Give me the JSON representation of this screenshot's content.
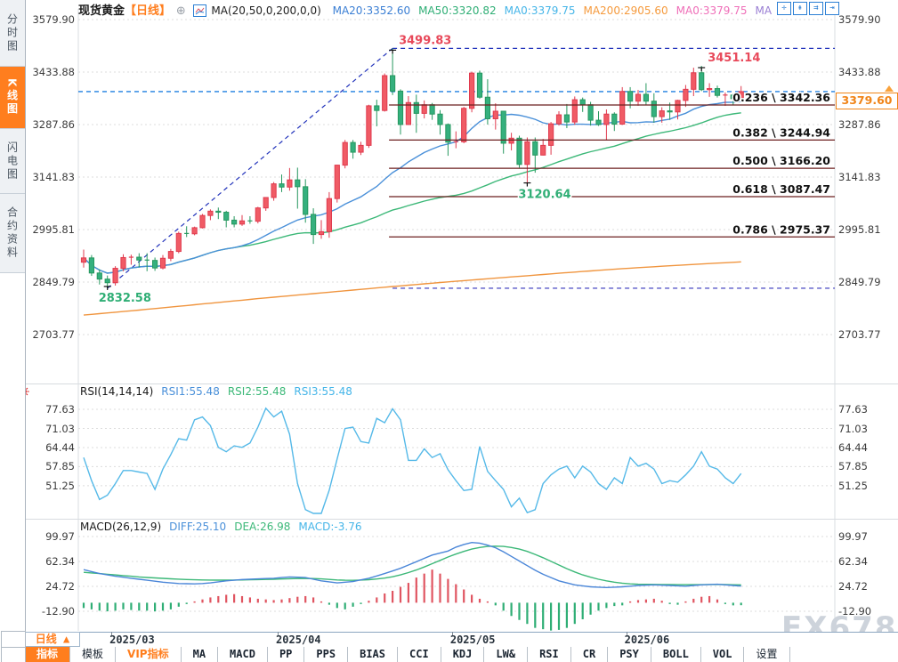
{
  "app": {
    "watermark": "FX678"
  },
  "sidebar": {
    "tabs": [
      {
        "name": "time-chart",
        "label": "分时图",
        "active": false
      },
      {
        "name": "kline-chart",
        "label": "K线图",
        "active": true
      },
      {
        "name": "lightning-chart",
        "label": "闪电图",
        "active": false
      },
      {
        "name": "contract-info",
        "label": "合约资料",
        "active": false
      }
    ]
  },
  "header": {
    "symbol": "现货黄金",
    "period_tag": "【日线】",
    "plus_icon": "⊕",
    "ma_settings": "MA(20,50,0,200,0,0)",
    "ma_values": [
      {
        "label": "MA20:3352.60",
        "color": "#3b7fd4"
      },
      {
        "label": "MA50:3320.82",
        "color": "#2fae75"
      },
      {
        "label": "MA0:3379.75",
        "color": "#45b5e8"
      },
      {
        "label": "MA200:2905.60",
        "color": "#f59a3d"
      },
      {
        "label": "MA0:3379.75",
        "color": "#ef6eb8"
      },
      {
        "label": "MA",
        "color": "#9a7fd4"
      }
    ],
    "window_icons": [
      "pan-icon",
      "zoom-vertical-icon",
      "zoom-horizontal-icon",
      "exit-icon"
    ],
    "window_icon_glyphs": [
      "✛",
      "╚↑",
      "╚→",
      "❘→"
    ]
  },
  "price_box": {
    "value": "3379.60"
  },
  "footer": {
    "period_button": "日线 ▲",
    "settings_icon": "✳",
    "toolbar": [
      {
        "label": "指标",
        "active": true
      },
      {
        "label": "模板"
      },
      {
        "label": "VIP指标",
        "vip": true
      },
      {
        "label": "MA"
      },
      {
        "label": "MACD"
      },
      {
        "label": "PP"
      },
      {
        "label": "PPS"
      },
      {
        "label": "BIAS"
      },
      {
        "label": "CCI"
      },
      {
        "label": "KDJ"
      },
      {
        "label": "LW&"
      },
      {
        "label": "RSI"
      },
      {
        "label": "CR"
      },
      {
        "label": "PSY"
      },
      {
        "label": "BOLL"
      },
      {
        "label": "VOL"
      },
      {
        "label": "设置"
      }
    ]
  },
  "chart_data": {
    "type": "candlestick",
    "title": "现货黄金 日线",
    "x_axis": {
      "months": [
        {
          "label": "2025/03",
          "index": 3.5
        },
        {
          "label": "2025/04",
          "index": 24.5
        },
        {
          "label": "2025/05",
          "index": 46.5
        },
        {
          "label": "2025/06",
          "index": 68.5
        }
      ]
    },
    "main": {
      "y_axis": [
        3579.9,
        3433.88,
        3287.86,
        3141.83,
        2995.81,
        2849.79,
        2703.77
      ],
      "current_price": 3379.6,
      "candle_up_color": "#ef5160",
      "candle_down_color": "#30ae7b",
      "candles": [
        [
          2905,
          2940,
          2890,
          2917
        ],
        [
          2917,
          2925,
          2867,
          2875
        ],
        [
          2875,
          2885,
          2843,
          2858
        ],
        [
          2858,
          2868,
          2832.58,
          2848
        ],
        [
          2848,
          2894,
          2840,
          2888
        ],
        [
          2888,
          2927,
          2880,
          2918
        ],
        [
          2918,
          2926,
          2898,
          2919
        ],
        [
          2919,
          2930,
          2891,
          2911
        ],
        [
          2911,
          2930,
          2880,
          2910
        ],
        [
          2910,
          2918,
          2881,
          2889
        ],
        [
          2889,
          2925,
          2885,
          2916
        ],
        [
          2916,
          2942,
          2908,
          2935
        ],
        [
          2935,
          2990,
          2930,
          2985
        ],
        [
          2985,
          3005,
          2975,
          2984
        ],
        [
          2984,
          3004,
          2980,
          3001
        ],
        [
          3001,
          3039,
          2999,
          3035
        ],
        [
          3035,
          3052,
          3022,
          3047
        ],
        [
          3047,
          3057,
          3025,
          3044
        ],
        [
          3044,
          3048,
          3002,
          3022
        ],
        [
          3022,
          3033,
          3002,
          3011
        ],
        [
          3011,
          3036,
          3006,
          3020
        ],
        [
          3020,
          3033,
          3012,
          3019
        ],
        [
          3019,
          3059,
          3013,
          3056
        ],
        [
          3056,
          3086,
          3048,
          3085
        ],
        [
          3085,
          3128,
          3076,
          3123
        ],
        [
          3123,
          3149,
          3100,
          3114
        ],
        [
          3114,
          3167,
          3104,
          3134
        ],
        [
          3134,
          3168,
          3054,
          3115
        ],
        [
          3115,
          3136,
          3015,
          3038
        ],
        [
          3038,
          3055,
          2956,
          2982
        ],
        [
          2982,
          3022,
          2970,
          2990
        ],
        [
          2990,
          3100,
          2973,
          3082
        ],
        [
          3082,
          3176,
          3071,
          3175
        ],
        [
          3175,
          3245,
          3166,
          3238
        ],
        [
          3238,
          3245,
          3193,
          3211
        ],
        [
          3211,
          3240,
          3203,
          3230
        ],
        [
          3230,
          3343,
          3223,
          3340
        ],
        [
          3340,
          3357,
          3283,
          3327
        ],
        [
          3327,
          3430,
          3324,
          3424
        ],
        [
          3424,
          3499.83,
          3370,
          3381
        ],
        [
          3381,
          3386,
          3260,
          3288
        ],
        [
          3288,
          3367,
          3287,
          3349
        ],
        [
          3349,
          3371,
          3265,
          3319
        ],
        [
          3319,
          3355,
          3305,
          3343
        ],
        [
          3343,
          3348,
          3301,
          3317
        ],
        [
          3317,
          3328,
          3260,
          3288
        ],
        [
          3288,
          3291,
          3201,
          3239
        ],
        [
          3239,
          3269,
          3222,
          3240
        ],
        [
          3240,
          3337,
          3236,
          3333
        ],
        [
          3333,
          3435,
          3322,
          3431
        ],
        [
          3431,
          3438,
          3360,
          3364
        ],
        [
          3364,
          3414,
          3288,
          3304
        ],
        [
          3304,
          3347,
          3274,
          3325
        ],
        [
          3325,
          3326,
          3207,
          3236
        ],
        [
          3236,
          3265,
          3216,
          3250
        ],
        [
          3250,
          3257,
          3168,
          3177
        ],
        [
          3177,
          3252,
          3120.64,
          3240
        ],
        [
          3240,
          3252,
          3154,
          3203
        ],
        [
          3203,
          3248,
          3202,
          3230
        ],
        [
          3230,
          3295,
          3204,
          3290
        ],
        [
          3290,
          3325,
          3285,
          3315
        ],
        [
          3315,
          3345,
          3278,
          3295
        ],
        [
          3295,
          3366,
          3287,
          3357
        ],
        [
          3357,
          3363,
          3323,
          3343
        ],
        [
          3343,
          3351,
          3285,
          3300
        ],
        [
          3300,
          3325,
          3284,
          3288
        ],
        [
          3288,
          3330,
          3245,
          3317
        ],
        [
          3317,
          3322,
          3270,
          3289
        ],
        [
          3289,
          3392,
          3287,
          3380
        ],
        [
          3380,
          3392,
          3333,
          3353
        ],
        [
          3353,
          3384,
          3340,
          3372
        ],
        [
          3372,
          3403,
          3343,
          3353
        ],
        [
          3353,
          3375,
          3293,
          3310
        ],
        [
          3310,
          3336,
          3293,
          3326
        ],
        [
          3326,
          3349,
          3301,
          3323
        ],
        [
          3323,
          3357,
          3302,
          3355
        ],
        [
          3355,
          3398,
          3337,
          3386
        ],
        [
          3386,
          3446,
          3367,
          3432
        ],
        [
          3432,
          3451.14,
          3381,
          3385
        ],
        [
          3385,
          3403,
          3365,
          3388
        ],
        [
          3388,
          3396,
          3363,
          3369
        ],
        [
          3369,
          3377,
          3340,
          3370
        ],
        [
          3370,
          3374,
          3341,
          3360
        ],
        [
          3360,
          3395,
          3352,
          3379.6
        ]
      ],
      "ma20_color": "#4a90d9",
      "ma50_color": "#3cb878",
      "ma200_color": "#f0953f",
      "ma200_points": [
        2758,
        2773,
        2789,
        2805,
        2820,
        2835,
        2849,
        2862,
        2875,
        2887,
        2897,
        2906
      ],
      "fib_start_index": 39,
      "fib_levels": [
        {
          "label": "0.236 \\ 3342.36",
          "price": 3342.36
        },
        {
          "label": "0.382 \\ 3244.94",
          "price": 3244.94
        },
        {
          "label": "0.500 \\ 3166.20",
          "price": 3166.2
        },
        {
          "label": "0.618 \\ 3087.47",
          "price": 3087.47
        },
        {
          "label": "0.786 \\ 2975.37",
          "price": 2975.37
        }
      ],
      "fib_one_level": {
        "price": 2832.58
      },
      "high_line": {
        "price": 3499.83
      },
      "trend_line": {
        "from_index": 3,
        "from_price": 2832.58,
        "to_index": 39,
        "to_price": 3499.83
      },
      "annotations": [
        {
          "text": "3499.83",
          "index": 39,
          "price": 3499.83,
          "color": "#e8495a",
          "pos": "top"
        },
        {
          "text": "3451.14",
          "index": 78,
          "price": 3451.14,
          "color": "#e8495a",
          "pos": "top"
        },
        {
          "text": "2832.58",
          "index": 3,
          "price": 2832.58,
          "color": "#2fae75",
          "pos": "bottom"
        },
        {
          "text": "3120.64",
          "index": 56,
          "price": 3120.64,
          "color": "#2fae75",
          "pos": "bottom"
        }
      ]
    },
    "rsi": {
      "title": "RSI(14,14,14)",
      "legend": [
        {
          "label": "RSI1:55.48",
          "color": "#4a90d9"
        },
        {
          "label": "RSI2:55.48",
          "color": "#3cb878"
        },
        {
          "label": "RSI3:55.48",
          "color": "#45b5e8"
        }
      ],
      "y_axis": [
        77.63,
        71.03,
        64.44,
        57.85,
        51.25
      ],
      "line_color": "#55b9e8",
      "values": [
        61,
        53,
        46.5,
        48,
        52,
        56.5,
        56.5,
        56,
        55.5,
        50,
        57,
        62,
        67.5,
        67,
        74,
        75,
        72,
        64.5,
        63,
        65,
        64.5,
        66,
        71.5,
        78,
        75,
        77,
        69,
        52,
        43,
        41.7,
        41.7,
        49.7,
        60.5,
        71,
        71.5,
        66.5,
        66,
        74.5,
        73,
        77.8,
        74,
        60,
        60,
        64,
        61,
        62.3,
        56.8,
        53,
        49.6,
        50,
        64.8,
        56.2,
        53,
        50,
        44,
        47,
        42,
        43,
        52,
        55,
        57,
        58,
        54,
        58,
        56,
        52,
        50,
        54,
        52,
        61,
        58,
        59,
        57,
        52,
        53,
        52.5,
        55,
        58,
        63,
        58,
        57,
        54,
        52,
        55.48
      ]
    },
    "macd": {
      "title": "MACD(26,12,9)",
      "legend": [
        {
          "label": "DIFF:25.10",
          "color": "#4a90d9"
        },
        {
          "label": "DEA:26.98",
          "color": "#3cb878"
        },
        {
          "label": "MACD:-3.76",
          "color": "#45b5e8"
        }
      ],
      "y_axis": [
        99.97,
        62.34,
        24.72,
        -12.9
      ],
      "diff_color": "#4a86d8",
      "dea_color": "#3cb878",
      "hist_up_color": "#e05561",
      "hist_down_color": "#2fae75",
      "diff": [
        50,
        47,
        44,
        42,
        40,
        38.5,
        37,
        35.5,
        34,
        32.5,
        31,
        30,
        29,
        28.7,
        28.5,
        29,
        30,
        31.5,
        33,
        34,
        35,
        35.5,
        36,
        36.5,
        37,
        38,
        39,
        38.5,
        38,
        35.5,
        33,
        31.5,
        30,
        31,
        32,
        34.5,
        37,
        40.5,
        44,
        48,
        52,
        57,
        62,
        67,
        72,
        75,
        78,
        84,
        88,
        91,
        90,
        87,
        83,
        77,
        70,
        63,
        56,
        49,
        43,
        38,
        33,
        30,
        27,
        25.5,
        24,
        23.5,
        23,
        23.5,
        24,
        25,
        26,
        26.5,
        27,
        26.5,
        26,
        25.5,
        25,
        26,
        27,
        27.5,
        28,
        27,
        26,
        25.1
      ],
      "dea": [
        46,
        45,
        44,
        43,
        42,
        41,
        40,
        39,
        38.2,
        37.5,
        36.8,
        36.2,
        35.6,
        35.1,
        34.7,
        34.4,
        34.2,
        34.1,
        34.1,
        34.2,
        34.4,
        34.6,
        34.9,
        35.2,
        35.5,
        35.9,
        36.3,
        36.6,
        36.8,
        36.6,
        36,
        35.2,
        34.4,
        34,
        33.9,
        34.2,
        34.8,
        35.8,
        37.2,
        39.2,
        42,
        45.5,
        49.5,
        54,
        59,
        64,
        69,
        73.5,
        77.5,
        81,
        83.5,
        85,
        85.5,
        85,
        83.5,
        81,
        77.5,
        73,
        68,
        62.5,
        57,
        51.5,
        46.5,
        42,
        38.5,
        35.5,
        33,
        31,
        29.5,
        28.5,
        28,
        27.8,
        27.6,
        27.5,
        27.4,
        27.3,
        27.2,
        27.2,
        27.3,
        27.5,
        27.6,
        27.4,
        27.1,
        26.98
      ],
      "hist": [
        -8,
        -10,
        -12,
        -13,
        -12,
        -10,
        -11,
        -12,
        -12,
        -13,
        -12,
        -10,
        -6,
        -2,
        2,
        5,
        8,
        10,
        12,
        13,
        10,
        8,
        6,
        5,
        4,
        5,
        7,
        9,
        10,
        8,
        2,
        -3,
        -8,
        -10,
        -6,
        -2,
        3,
        8,
        14,
        18,
        24,
        30,
        38,
        44,
        50,
        44,
        36,
        28,
        20,
        12,
        6,
        2,
        -4,
        -12,
        -20,
        -26,
        -32,
        -38,
        -40,
        -42,
        -41,
        -38,
        -32,
        -25,
        -18,
        -12,
        -8,
        -5,
        -4,
        2,
        4,
        5,
        6,
        3,
        -2,
        -3,
        2,
        6,
        9,
        10,
        5,
        -2,
        -4,
        -3.76
      ]
    }
  }
}
